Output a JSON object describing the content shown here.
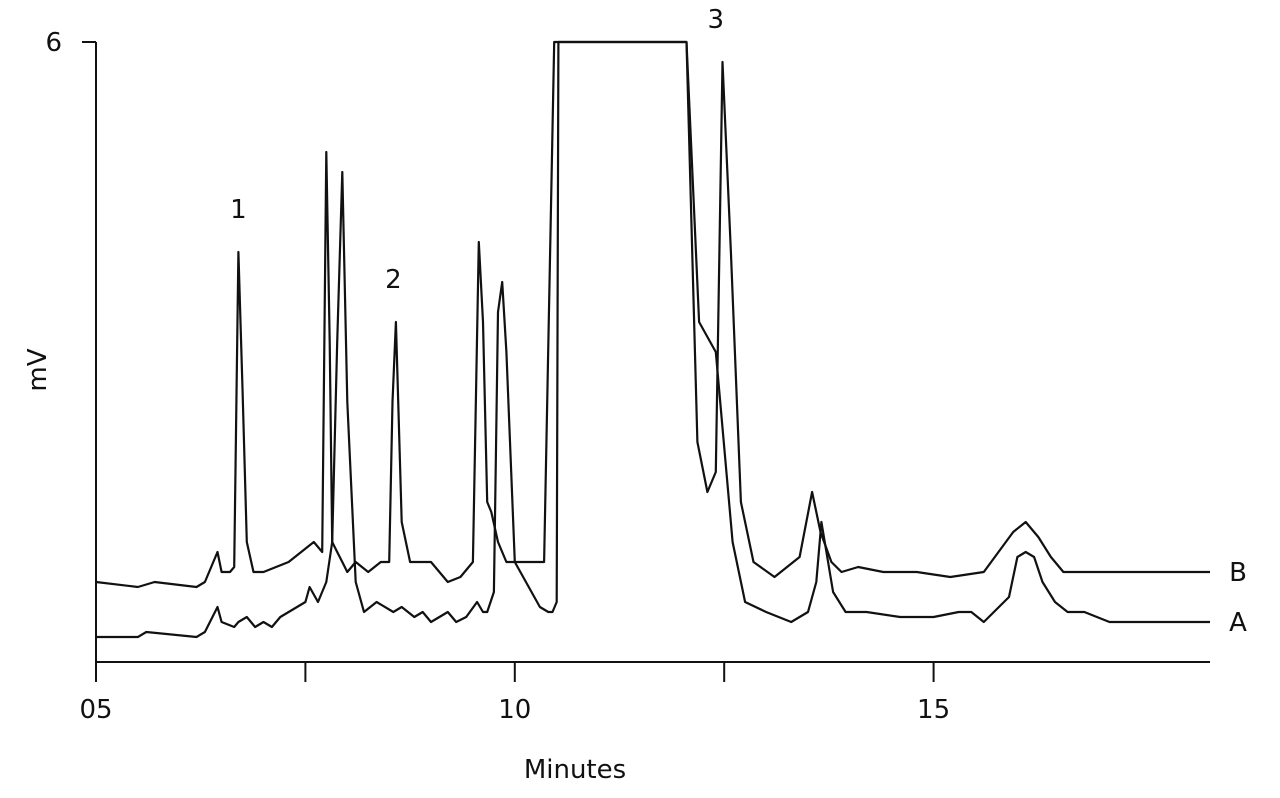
{
  "chart_data": {
    "type": "line",
    "title": "",
    "xlabel": "Minutes",
    "ylabel": "mV",
    "y_tick_labels": [
      "6"
    ],
    "x_ticks": [
      {
        "value": 5,
        "label": "05"
      },
      {
        "value": 7.5,
        "label": ""
      },
      {
        "value": 10,
        "label": "10"
      },
      {
        "value": 12.5,
        "label": ""
      },
      {
        "value": 15,
        "label": "15"
      }
    ],
    "xlim": [
      5,
      18.3
    ],
    "ylim": [
      -0.2,
      6
    ],
    "grid": false,
    "legend": "right-inline",
    "peak_labels": [
      {
        "text": "1",
        "x": 6.7,
        "y": 4.1
      },
      {
        "text": "2",
        "x": 8.55,
        "y": 3.4
      },
      {
        "text": "3",
        "x": 12.4,
        "y": 6.0
      }
    ],
    "series": [
      {
        "name": "B",
        "x": [
          5.0,
          5.5,
          5.7,
          6.2,
          6.3,
          6.45,
          6.5,
          6.6,
          6.65,
          6.7,
          6.75,
          6.8,
          6.88,
          7.0,
          7.3,
          7.6,
          7.7,
          7.75,
          7.79,
          7.82,
          7.88,
          7.94,
          8.0,
          8.1,
          8.25,
          8.4,
          8.5,
          8.54,
          8.58,
          8.65,
          8.75,
          9.0,
          9.2,
          9.35,
          9.5,
          9.57,
          9.62,
          9.67,
          9.72,
          9.8,
          9.9,
          10.35,
          10.47,
          10.5,
          10.52,
          12.05,
          12.18,
          12.3,
          12.4,
          12.48,
          12.58,
          12.7,
          12.85,
          13.1,
          13.4,
          13.55,
          13.65,
          13.78,
          13.9,
          14.1,
          14.4,
          14.6,
          14.8,
          15.2,
          15.6,
          15.95,
          16.1,
          16.25,
          16.4,
          16.55,
          16.7,
          16.8,
          16.95,
          17.1,
          18.3
        ],
        "y": [
          0.6,
          0.55,
          0.6,
          0.55,
          0.6,
          0.9,
          0.7,
          0.7,
          0.75,
          3.9,
          2.5,
          1.0,
          0.7,
          0.7,
          0.8,
          1.0,
          0.9,
          4.9,
          3.0,
          1.0,
          0.9,
          0.8,
          0.7,
          0.8,
          0.7,
          0.8,
          0.8,
          2.4,
          3.2,
          1.2,
          0.8,
          0.8,
          0.6,
          0.65,
          0.8,
          4.0,
          3.2,
          1.4,
          1.3,
          1.0,
          0.8,
          0.8,
          6.0,
          6.0,
          6.0,
          6.0,
          2.0,
          1.5,
          1.7,
          5.8,
          3.9,
          1.4,
          0.8,
          0.65,
          0.85,
          1.5,
          1.1,
          0.8,
          0.7,
          0.75,
          0.7,
          0.7,
          0.7,
          0.65,
          0.7,
          1.1,
          1.2,
          1.05,
          0.85,
          0.7,
          0.7,
          0.7,
          0.7,
          0.7,
          0.7
        ]
      },
      {
        "name": "A",
        "x": [
          5.0,
          5.5,
          5.6,
          6.2,
          6.3,
          6.45,
          6.5,
          6.65,
          6.7,
          6.8,
          6.9,
          7.0,
          7.1,
          7.2,
          7.5,
          7.55,
          7.65,
          7.75,
          7.82,
          7.88,
          7.94,
          8.0,
          8.1,
          8.2,
          8.35,
          8.55,
          8.65,
          8.8,
          8.9,
          9.0,
          9.2,
          9.3,
          9.42,
          9.55,
          9.62,
          9.67,
          9.75,
          9.8,
          9.85,
          9.9,
          10.0,
          10.3,
          10.4,
          10.45,
          10.5,
          10.52,
          10.53,
          12.05,
          12.2,
          12.4,
          12.6,
          12.75,
          13.0,
          13.3,
          13.5,
          13.6,
          13.66,
          13.8,
          13.95,
          14.2,
          14.6,
          15.0,
          15.3,
          15.45,
          15.6,
          15.9,
          16.0,
          16.1,
          16.2,
          16.3,
          16.45,
          16.6,
          16.8,
          16.95,
          17.1,
          18.3
        ],
        "y": [
          0.05,
          0.05,
          0.1,
          0.05,
          0.1,
          0.35,
          0.2,
          0.15,
          0.2,
          0.25,
          0.15,
          0.2,
          0.15,
          0.25,
          0.4,
          0.55,
          0.4,
          0.6,
          1.0,
          3.0,
          4.7,
          2.4,
          0.6,
          0.3,
          0.4,
          0.3,
          0.35,
          0.25,
          0.3,
          0.2,
          0.3,
          0.2,
          0.25,
          0.4,
          0.3,
          0.3,
          0.5,
          3.3,
          3.6,
          2.9,
          0.8,
          0.35,
          0.3,
          0.3,
          0.4,
          6.0,
          6.0,
          6.0,
          3.2,
          2.9,
          1.0,
          0.4,
          0.3,
          0.2,
          0.3,
          0.6,
          1.2,
          0.5,
          0.3,
          0.3,
          0.25,
          0.25,
          0.3,
          0.3,
          0.2,
          0.45,
          0.85,
          0.9,
          0.85,
          0.6,
          0.4,
          0.3,
          0.3,
          0.25,
          0.2,
          0.2
        ]
      }
    ]
  }
}
